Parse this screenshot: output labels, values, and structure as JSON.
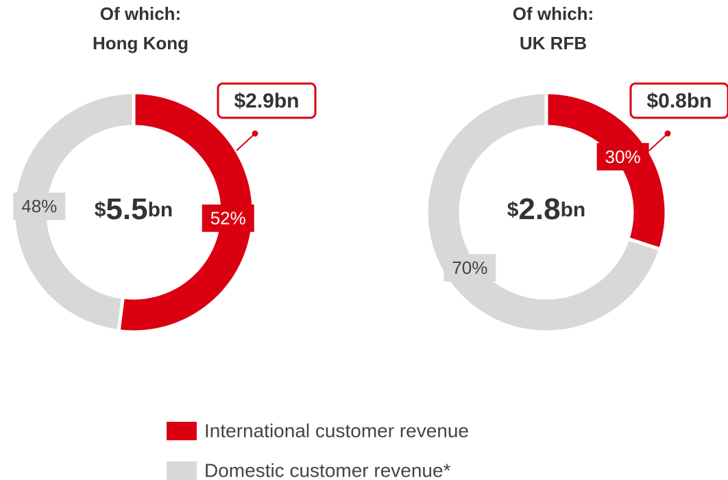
{
  "chart_data": [
    {
      "type": "donut",
      "title": [
        "Of which:",
        "Hong Kong"
      ],
      "total_label": "$5.5bn",
      "annotation": "$2.9bn",
      "values": [
        52,
        48
      ],
      "value_labels": [
        "52%",
        "48%"
      ]
    },
    {
      "type": "donut",
      "title": [
        "Of which:",
        "UK RFB"
      ],
      "total_label": "$2.8bn",
      "annotation": "$0.8bn",
      "values": [
        30,
        70
      ],
      "value_labels": [
        "30%",
        "70%"
      ]
    }
  ],
  "legend": {
    "items": [
      {
        "name": "International customer revenue",
        "color": "#db0011"
      },
      {
        "name": "Domestic customer revenue*",
        "color": "#d9d8d6"
      }
    ]
  }
}
